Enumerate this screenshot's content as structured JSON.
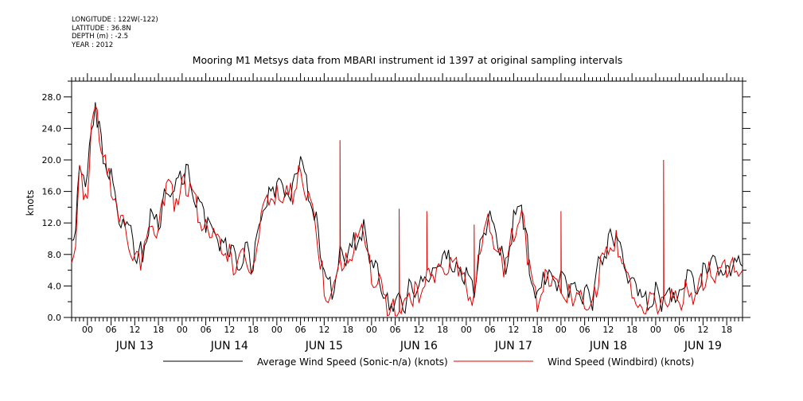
{
  "header": {
    "lines": [
      "LONGITUDE : 122W(-122)",
      "LATITUDE : 36.8N",
      "DEPTH (m) : -2.5",
      "YEAR : 2012"
    ]
  },
  "chart_data": {
    "type": "line",
    "title": "Mooring M1 Metsys data from MBARI instrument id 1397 at original sampling intervals",
    "xlabel": "",
    "ylabel": "knots",
    "xlim": [
      "2012-06-12T20:00",
      "2012-06-19T22:00"
    ],
    "ylim": [
      0,
      30
    ],
    "yticks": [
      0.0,
      4.0,
      8.0,
      12.0,
      16.0,
      20.0,
      24.0,
      28.0
    ],
    "ytick_labels": [
      "0.0",
      "4.0",
      "8.0",
      "12.0",
      "16.0",
      "20.0",
      "24.0",
      "28.0"
    ],
    "x_hour_labels": [
      "00",
      "06",
      "12",
      "18",
      "00",
      "06",
      "12",
      "18",
      "00",
      "06",
      "12",
      "18",
      "00",
      "06",
      "12",
      "18",
      "00",
      "06",
      "12",
      "18",
      "00",
      "06",
      "12",
      "18",
      "00",
      "06",
      "12",
      "18"
    ],
    "x_day_labels": [
      "JUN 13",
      "JUN 14",
      "JUN 15",
      "JUN 16",
      "JUN 17",
      "JUN 18",
      "JUN 19"
    ],
    "legend_position": "bottom",
    "colors": {
      "black_series": "#000000",
      "red_series": "#e00000"
    },
    "series": [
      {
        "name": "Average Wind Speed (Sonic-n/a) (knots)",
        "color": "#000000",
        "hours": [
          0,
          1,
          2,
          3,
          4,
          5,
          6,
          7,
          8,
          9,
          10,
          11,
          12,
          14,
          16,
          18,
          20,
          22,
          24,
          26,
          28,
          30,
          32,
          34,
          36,
          38,
          40,
          42,
          44,
          46,
          48,
          50,
          52,
          54,
          56,
          58,
          60,
          62,
          64,
          66,
          68,
          70,
          72,
          74,
          76,
          78,
          80,
          82,
          84,
          86,
          88,
          90,
          92,
          94,
          96,
          98,
          100,
          102,
          104,
          106,
          108,
          110,
          112,
          114,
          116,
          118,
          120,
          122,
          124,
          126,
          128,
          130,
          132,
          134,
          136,
          138,
          140,
          142,
          144,
          146,
          148,
          150,
          152,
          154,
          156,
          158,
          160,
          162,
          164,
          166,
          168,
          170
        ],
        "values": [
          9.5,
          11.0,
          19.5,
          17.5,
          17.0,
          24.0,
          26.5,
          24.0,
          21.0,
          19.5,
          18.0,
          16.0,
          13.0,
          12.0,
          8.5,
          8.0,
          13.0,
          11.5,
          17.0,
          16.0,
          17.5,
          18.5,
          14.0,
          12.0,
          11.0,
          9.5,
          9.0,
          7.0,
          8.5,
          6.5,
          13.0,
          15.5,
          17.0,
          16.5,
          16.0,
          19.5,
          16.0,
          12.0,
          5.0,
          3.5,
          8.0,
          7.5,
          10.0,
          11.5,
          6.5,
          5.0,
          2.5,
          2.0,
          1.5,
          4.0,
          3.5,
          5.0,
          6.0,
          7.5,
          7.0,
          7.0,
          5.0,
          3.0,
          11.0,
          13.0,
          9.0,
          6.5,
          12.0,
          14.5,
          7.0,
          2.0,
          5.5,
          5.0,
          4.5,
          4.0,
          3.5,
          3.0,
          2.0,
          7.5,
          9.5,
          10.5,
          6.5,
          5.0,
          2.5,
          2.5,
          3.0,
          2.0,
          3.5,
          3.0,
          5.0,
          3.5,
          6.0,
          6.5,
          6.5,
          6.5,
          6.5,
          6.5
        ]
      },
      {
        "name": "Wind Speed (Windbird) (knots)",
        "color": "#e00000",
        "hours": [
          0,
          1,
          2,
          3,
          4,
          5,
          6,
          7,
          8,
          9,
          10,
          11,
          12,
          14,
          16,
          18,
          20,
          22,
          24,
          26,
          28,
          30,
          32,
          34,
          36,
          38,
          40,
          42,
          44,
          46,
          48,
          50,
          52,
          54,
          56,
          58,
          60,
          62,
          64,
          66,
          68,
          70,
          72,
          74,
          76,
          78,
          80,
          82,
          84,
          86,
          88,
          90,
          92,
          94,
          96,
          98,
          100,
          102,
          104,
          106,
          108,
          110,
          112,
          114,
          116,
          118,
          120,
          122,
          124,
          126,
          128,
          130,
          132,
          134,
          136,
          138,
          140,
          142,
          144,
          146,
          148,
          150,
          152,
          154,
          156,
          158,
          160,
          162,
          164,
          166,
          168,
          170
        ],
        "values": [
          8.5,
          10.0,
          18.5,
          16.5,
          16.0,
          23.5,
          27.0,
          23.0,
          20.0,
          18.5,
          17.0,
          15.0,
          12.5,
          11.0,
          7.5,
          7.5,
          12.0,
          11.0,
          16.5,
          15.0,
          16.5,
          17.0,
          13.0,
          11.0,
          10.0,
          9.0,
          8.0,
          6.0,
          8.0,
          6.0,
          12.0,
          15.0,
          16.0,
          15.5,
          15.5,
          18.5,
          15.0,
          11.0,
          4.0,
          2.5,
          7.5,
          7.0,
          9.5,
          11.0,
          5.5,
          4.0,
          1.5,
          1.0,
          1.0,
          3.0,
          3.0,
          4.5,
          5.5,
          6.5,
          6.5,
          6.5,
          4.0,
          2.5,
          10.5,
          12.0,
          8.0,
          6.0,
          11.0,
          13.5,
          6.0,
          1.5,
          4.5,
          4.5,
          3.5,
          3.0,
          3.0,
          2.0,
          1.5,
          6.5,
          9.0,
          9.5,
          6.0,
          4.0,
          1.5,
          1.5,
          2.0,
          1.5,
          2.5,
          2.0,
          4.0,
          2.5,
          5.0,
          6.0,
          6.0,
          6.0,
          6.0,
          6.0
        ],
        "spikes": [
          {
            "hour": 68,
            "value": 22.5
          },
          {
            "hour": 83,
            "value": 13.8
          },
          {
            "hour": 90,
            "value": 13.5
          },
          {
            "hour": 102,
            "value": 11.8
          },
          {
            "hour": 124,
            "value": 13.5
          },
          {
            "hour": 150,
            "value": 20.0
          }
        ]
      }
    ]
  }
}
